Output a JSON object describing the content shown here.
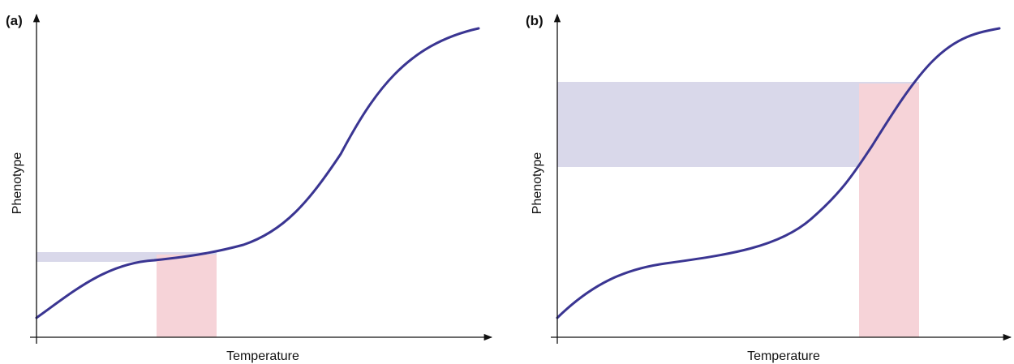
{
  "figure": {
    "panels": [
      {
        "label": "(a)",
        "xlabel": "Temperature",
        "ylabel": "Phenotype"
      },
      {
        "label": "(b)",
        "xlabel": "Temperature",
        "ylabel": "Phenotype"
      }
    ]
  },
  "colors": {
    "curve": "#3a3592",
    "temperature_band": "#f6d3d8",
    "phenotype_band": "#d9d8ea",
    "axis": "#111111"
  }
}
